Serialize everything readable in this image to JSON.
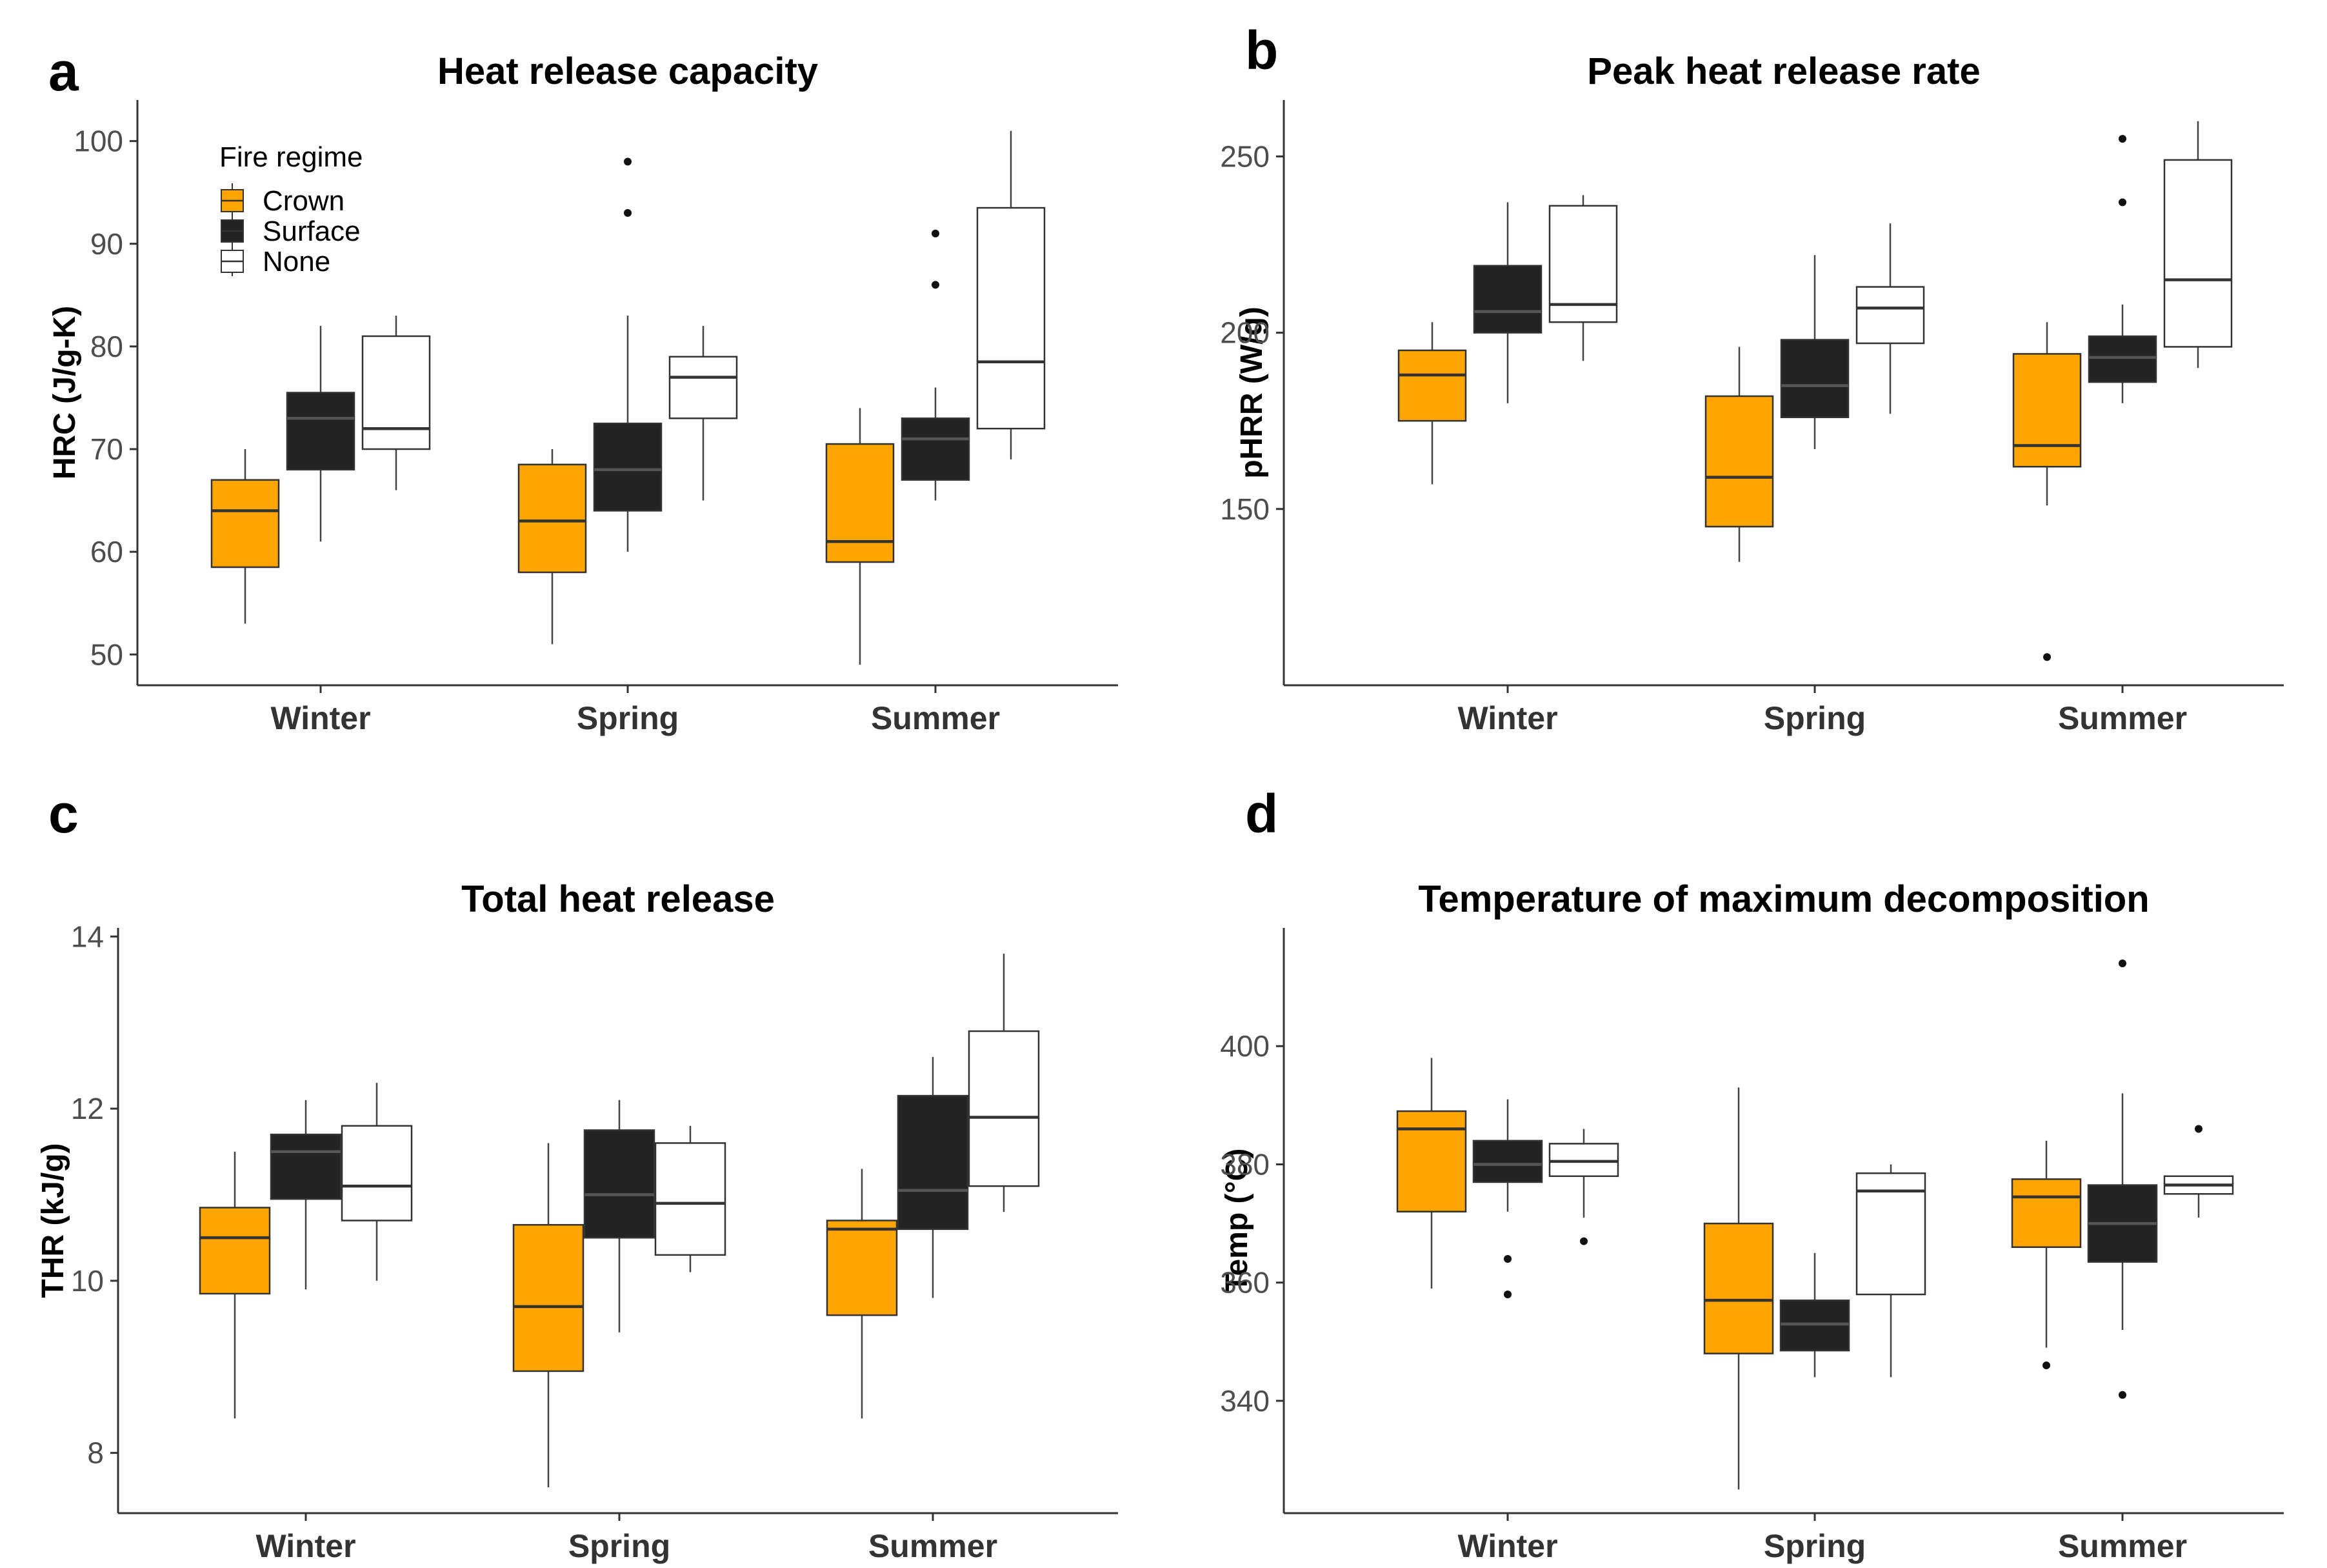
{
  "colors": {
    "Crown": "#FFA500",
    "Surface": "#232323",
    "None": "#FFFFFF"
  },
  "legend": {
    "title": "Fire regime",
    "entries": [
      "Crown",
      "Surface",
      "None"
    ]
  },
  "chart_data": [
    {
      "type": "boxplot",
      "panel_label": "a",
      "title": "Heat release capacity",
      "ylabel": "HRC (J/g-K)",
      "categories": [
        "Winter",
        "Spring",
        "Summer"
      ],
      "groups": [
        "Crown",
        "Surface",
        "None"
      ],
      "ylim": [
        47,
        104
      ],
      "yticks": [
        50,
        60,
        70,
        80,
        90,
        100
      ],
      "boxes": [
        {
          "season": "Winter",
          "group": "Crown",
          "min": 53,
          "q1": 58.5,
          "median": 64,
          "q3": 67,
          "max": 70,
          "outliers": []
        },
        {
          "season": "Winter",
          "group": "Surface",
          "min": 61,
          "q1": 68,
          "median": 73,
          "q3": 75.5,
          "max": 82,
          "outliers": []
        },
        {
          "season": "Winter",
          "group": "None",
          "min": 66,
          "q1": 70,
          "median": 72,
          "q3": 81,
          "max": 83,
          "outliers": []
        },
        {
          "season": "Spring",
          "group": "Crown",
          "min": 51,
          "q1": 58,
          "median": 63,
          "q3": 68.5,
          "max": 70,
          "outliers": []
        },
        {
          "season": "Spring",
          "group": "Surface",
          "min": 60,
          "q1": 64,
          "median": 68,
          "q3": 72.5,
          "max": 83,
          "outliers": [
            93,
            98
          ]
        },
        {
          "season": "Spring",
          "group": "None",
          "min": 65,
          "q1": 73,
          "median": 77,
          "q3": 79,
          "max": 82,
          "outliers": []
        },
        {
          "season": "Summer",
          "group": "Crown",
          "min": 49,
          "q1": 59,
          "median": 61,
          "q3": 70.5,
          "max": 74,
          "outliers": []
        },
        {
          "season": "Summer",
          "group": "Surface",
          "min": 65,
          "q1": 67,
          "median": 71,
          "q3": 73,
          "max": 76,
          "outliers": [
            86,
            91
          ]
        },
        {
          "season": "Summer",
          "group": "None",
          "min": 69,
          "q1": 72,
          "median": 78.5,
          "q3": 93.5,
          "max": 101,
          "outliers": []
        }
      ]
    },
    {
      "type": "boxplot",
      "panel_label": "b",
      "title": "Peak heat release rate",
      "ylabel": "pHRR (W/g)",
      "categories": [
        "Winter",
        "Spring",
        "Summer"
      ],
      "groups": [
        "Crown",
        "Surface",
        "None"
      ],
      "ylim": [
        100,
        266
      ],
      "yticks": [
        150,
        200,
        250
      ],
      "boxes": [
        {
          "season": "Winter",
          "group": "Crown",
          "min": 157,
          "q1": 175,
          "median": 188,
          "q3": 195,
          "max": 203,
          "outliers": []
        },
        {
          "season": "Winter",
          "group": "Surface",
          "min": 180,
          "q1": 200,
          "median": 206,
          "q3": 219,
          "max": 237,
          "outliers": []
        },
        {
          "season": "Winter",
          "group": "None",
          "min": 192,
          "q1": 203,
          "median": 208,
          "q3": 236,
          "max": 239,
          "outliers": []
        },
        {
          "season": "Spring",
          "group": "Crown",
          "min": 135,
          "q1": 145,
          "median": 159,
          "q3": 182,
          "max": 196,
          "outliers": []
        },
        {
          "season": "Spring",
          "group": "Surface",
          "min": 167,
          "q1": 176,
          "median": 185,
          "q3": 198,
          "max": 222,
          "outliers": []
        },
        {
          "season": "Spring",
          "group": "None",
          "min": 177,
          "q1": 197,
          "median": 207,
          "q3": 213,
          "max": 231,
          "outliers": []
        },
        {
          "season": "Summer",
          "group": "Crown",
          "min": 151,
          "q1": 162,
          "median": 168,
          "q3": 194,
          "max": 203,
          "outliers": [
            108
          ]
        },
        {
          "season": "Summer",
          "group": "Surface",
          "min": 180,
          "q1": 186,
          "median": 193,
          "q3": 199,
          "max": 208,
          "outliers": [
            237,
            255
          ]
        },
        {
          "season": "Summer",
          "group": "None",
          "min": 190,
          "q1": 196,
          "median": 215,
          "q3": 249,
          "max": 260,
          "outliers": []
        }
      ]
    },
    {
      "type": "boxplot",
      "panel_label": "c",
      "title": "Total heat release",
      "ylabel": "THR (kJ/g)",
      "categories": [
        "Winter",
        "Spring",
        "Summer"
      ],
      "groups": [
        "Crown",
        "Surface",
        "None"
      ],
      "ylim": [
        7.3,
        14.1
      ],
      "yticks": [
        8,
        10,
        12,
        14
      ],
      "boxes": [
        {
          "season": "Winter",
          "group": "Crown",
          "min": 8.4,
          "q1": 9.85,
          "median": 10.5,
          "q3": 10.85,
          "max": 11.5,
          "outliers": []
        },
        {
          "season": "Winter",
          "group": "Surface",
          "min": 9.9,
          "q1": 10.95,
          "median": 11.5,
          "q3": 11.7,
          "max": 12.1,
          "outliers": []
        },
        {
          "season": "Winter",
          "group": "None",
          "min": 10.0,
          "q1": 10.7,
          "median": 11.1,
          "q3": 11.8,
          "max": 12.3,
          "outliers": []
        },
        {
          "season": "Spring",
          "group": "Crown",
          "min": 7.6,
          "q1": 8.95,
          "median": 9.7,
          "q3": 10.65,
          "max": 11.6,
          "outliers": []
        },
        {
          "season": "Spring",
          "group": "Surface",
          "min": 9.4,
          "q1": 10.5,
          "median": 11.0,
          "q3": 11.75,
          "max": 12.1,
          "outliers": []
        },
        {
          "season": "Spring",
          "group": "None",
          "min": 10.1,
          "q1": 10.3,
          "median": 10.9,
          "q3": 11.6,
          "max": 11.8,
          "outliers": []
        },
        {
          "season": "Summer",
          "group": "Crown",
          "min": 8.4,
          "q1": 9.6,
          "median": 10.6,
          "q3": 10.7,
          "max": 11.3,
          "outliers": []
        },
        {
          "season": "Summer",
          "group": "Surface",
          "min": 9.8,
          "q1": 10.6,
          "median": 11.05,
          "q3": 12.15,
          "max": 12.6,
          "outliers": []
        },
        {
          "season": "Summer",
          "group": "None",
          "min": 10.8,
          "q1": 11.1,
          "median": 11.9,
          "q3": 12.9,
          "max": 13.8,
          "outliers": []
        }
      ]
    },
    {
      "type": "boxplot",
      "panel_label": "d",
      "title": "Temperature of maximum decomposition",
      "ylabel": "Temp (°C)",
      "categories": [
        "Winter",
        "Spring",
        "Summer"
      ],
      "groups": [
        "Crown",
        "Surface",
        "None"
      ],
      "ylim": [
        321,
        420
      ],
      "yticks": [
        340,
        360,
        380,
        400
      ],
      "boxes": [
        {
          "season": "Winter",
          "group": "Crown",
          "min": 359,
          "q1": 372,
          "median": 386,
          "q3": 389,
          "max": 398,
          "outliers": []
        },
        {
          "season": "Winter",
          "group": "Surface",
          "min": 372,
          "q1": 377,
          "median": 380,
          "q3": 384,
          "max": 391,
          "outliers": [
            358,
            364
          ]
        },
        {
          "season": "Winter",
          "group": "None",
          "min": 371,
          "q1": 378,
          "median": 380.5,
          "q3": 383.5,
          "max": 386,
          "outliers": [
            367
          ]
        },
        {
          "season": "Spring",
          "group": "Crown",
          "min": 325,
          "q1": 348,
          "median": 357,
          "q3": 370,
          "max": 393,
          "outliers": []
        },
        {
          "season": "Spring",
          "group": "Surface",
          "min": 344,
          "q1": 348.5,
          "median": 353,
          "q3": 357,
          "max": 365,
          "outliers": []
        },
        {
          "season": "Spring",
          "group": "None",
          "min": 344,
          "q1": 358,
          "median": 375.5,
          "q3": 378.5,
          "max": 380,
          "outliers": []
        },
        {
          "season": "Summer",
          "group": "Crown",
          "min": 349,
          "q1": 366,
          "median": 374.5,
          "q3": 377.5,
          "max": 384,
          "outliers": [
            346
          ]
        },
        {
          "season": "Summer",
          "group": "Surface",
          "min": 352,
          "q1": 363.5,
          "median": 370,
          "q3": 376.5,
          "max": 392,
          "outliers": [
            341,
            414
          ]
        },
        {
          "season": "Summer",
          "group": "None",
          "min": 371,
          "q1": 375,
          "median": 376.5,
          "q3": 378,
          "max": 378,
          "outliers": [
            386
          ]
        }
      ]
    }
  ]
}
